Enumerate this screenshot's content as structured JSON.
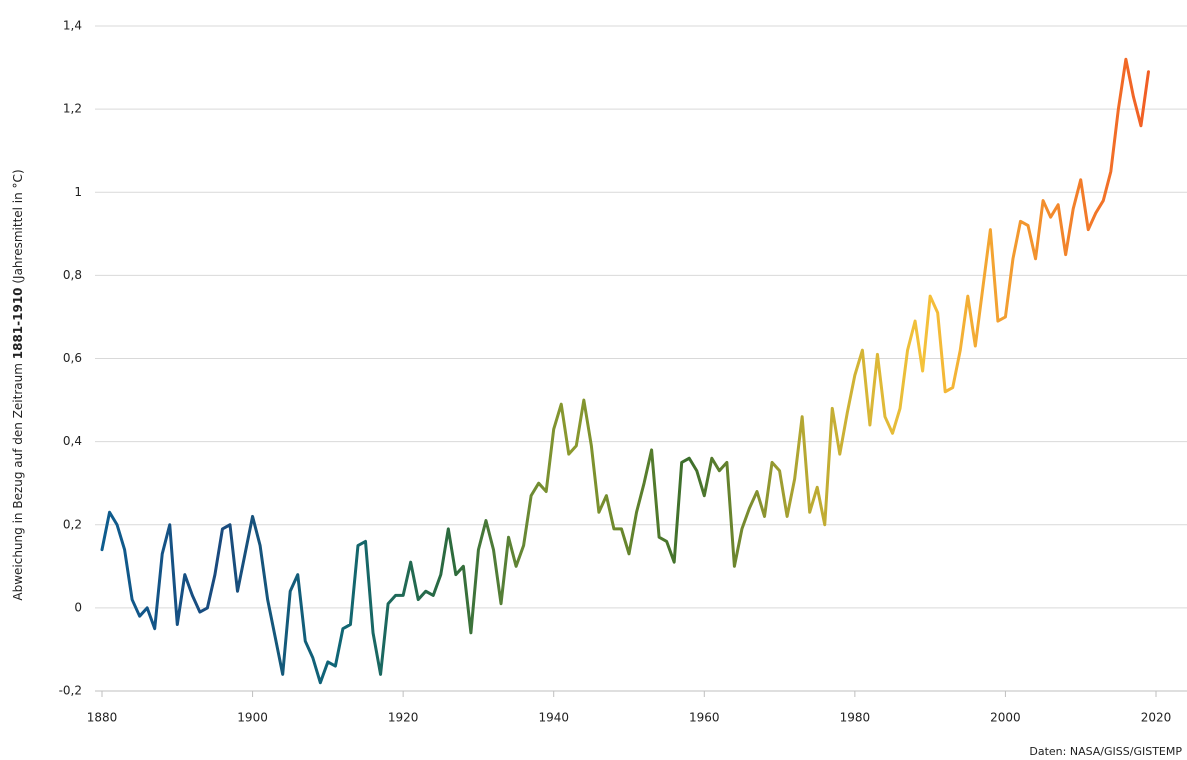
{
  "chart_data": {
    "type": "line",
    "y_label": [
      "Abweichung in Bezug auf den Zeitraum",
      "1881-1910",
      "(Jahresmittel in °C)"
    ],
    "source": "Daten: NASA/GISS/GISTEMP",
    "x": [
      1880,
      1881,
      1882,
      1883,
      1884,
      1885,
      1886,
      1887,
      1888,
      1889,
      1890,
      1891,
      1892,
      1893,
      1894,
      1895,
      1896,
      1897,
      1898,
      1899,
      1900,
      1901,
      1902,
      1903,
      1904,
      1905,
      1906,
      1907,
      1908,
      1909,
      1910,
      1911,
      1912,
      1913,
      1914,
      1915,
      1916,
      1917,
      1918,
      1919,
      1920,
      1921,
      1922,
      1923,
      1924,
      1925,
      1926,
      1927,
      1928,
      1929,
      1930,
      1931,
      1932,
      1933,
      1934,
      1935,
      1936,
      1937,
      1938,
      1939,
      1940,
      1941,
      1942,
      1943,
      1944,
      1945,
      1946,
      1947,
      1948,
      1949,
      1950,
      1951,
      1952,
      1953,
      1954,
      1955,
      1956,
      1957,
      1958,
      1959,
      1960,
      1961,
      1962,
      1963,
      1964,
      1965,
      1966,
      1967,
      1968,
      1969,
      1970,
      1971,
      1972,
      1973,
      1974,
      1975,
      1976,
      1977,
      1978,
      1979,
      1980,
      1981,
      1982,
      1983,
      1984,
      1985,
      1986,
      1987,
      1988,
      1989,
      1990,
      1991,
      1992,
      1993,
      1994,
      1995,
      1996,
      1997,
      1998,
      1999,
      2000,
      2001,
      2002,
      2003,
      2004,
      2005,
      2006,
      2007,
      2008,
      2009,
      2010,
      2011,
      2012,
      2013,
      2014,
      2015,
      2016,
      2017,
      2018,
      2019
    ],
    "series": [
      {
        "gradient": [
          "#0e5d8e",
          "#1a4a7e",
          "#0f6677",
          "#2d6b3c",
          "#8d9a2e",
          "#3b6e2c",
          "#b6a832",
          "#f4c23a",
          "#f2902d",
          "#f15a24"
        ],
        "values": [
          0.14,
          0.23,
          0.2,
          0.14,
          0.02,
          -0.02,
          0.0,
          -0.05,
          0.13,
          0.2,
          -0.04,
          0.08,
          0.03,
          -0.01,
          0.0,
          0.08,
          0.19,
          0.2,
          0.04,
          0.13,
          0.22,
          0.15,
          0.02,
          -0.07,
          -0.16,
          0.04,
          0.08,
          -0.08,
          -0.12,
          -0.18,
          -0.13,
          -0.14,
          -0.05,
          -0.04,
          0.15,
          0.16,
          -0.06,
          -0.16,
          0.01,
          0.03,
          0.03,
          0.11,
          0.02,
          0.04,
          0.03,
          0.08,
          0.19,
          0.08,
          0.1,
          -0.06,
          0.14,
          0.21,
          0.14,
          0.01,
          0.17,
          0.1,
          0.15,
          0.27,
          0.3,
          0.28,
          0.43,
          0.49,
          0.37,
          0.39,
          0.5,
          0.39,
          0.23,
          0.27,
          0.19,
          0.19,
          0.13,
          0.23,
          0.3,
          0.38,
          0.17,
          0.16,
          0.11,
          0.35,
          0.36,
          0.33,
          0.27,
          0.36,
          0.33,
          0.35,
          0.1,
          0.19,
          0.24,
          0.28,
          0.22,
          0.35,
          0.33,
          0.22,
          0.31,
          0.46,
          0.23,
          0.29,
          0.2,
          0.48,
          0.37,
          0.47,
          0.56,
          0.62,
          0.44,
          0.61,
          0.46,
          0.42,
          0.48,
          0.62,
          0.69,
          0.57,
          0.75,
          0.71,
          0.52,
          0.53,
          0.62,
          0.75,
          0.63,
          0.77,
          0.91,
          0.69,
          0.7,
          0.84,
          0.93,
          0.92,
          0.84,
          0.98,
          0.94,
          0.97,
          0.85,
          0.96,
          1.03,
          0.91,
          0.95,
          0.98,
          1.05,
          1.2,
          1.32,
          1.23,
          1.16,
          1.29
        ]
      }
    ],
    "xlim": [
      1880,
      2020
    ],
    "xticks": [
      1880,
      1900,
      1920,
      1940,
      1960,
      1980,
      2000,
      2020
    ],
    "ylim": [
      -0.2,
      1.4
    ],
    "yticks": [
      {
        "value": -0.2,
        "label": "-0,2"
      },
      0,
      {
        "value": 0.2,
        "label": "0,2"
      },
      {
        "value": 0.4,
        "label": "0,4"
      },
      {
        "value": 0.6,
        "label": "0,6"
      },
      {
        "value": 0.8,
        "label": "0,8"
      },
      1,
      {
        "value": 1.2,
        "label": "1,2"
      },
      {
        "value": 1.4,
        "label": "1,4"
      }
    ],
    "grid": true,
    "axis_color": "#bfbfbf"
  }
}
